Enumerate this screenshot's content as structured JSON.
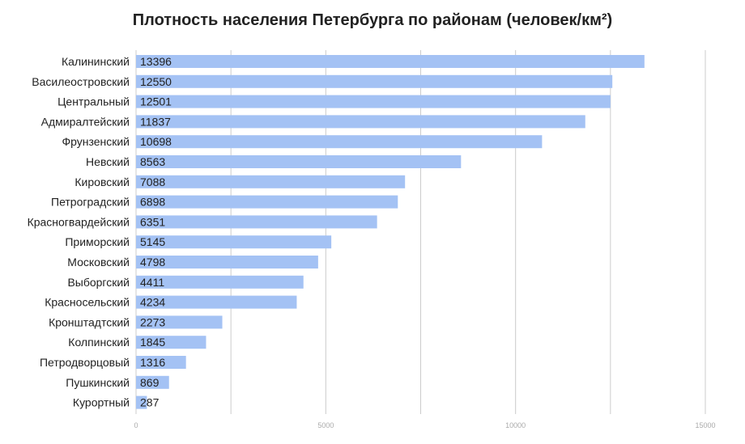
{
  "chart_data": {
    "type": "bar",
    "orientation": "horizontal",
    "title": "Плотность населения Петербурга по районам (человек/км²)",
    "categories": [
      "Калининский",
      "Василеостровский",
      "Центральный",
      "Адмиралтейский",
      "Фрунзенский",
      "Невский",
      "Кировский",
      "Петроградский",
      "Красногвардейский",
      "Приморский",
      "Московский",
      "Выборгский",
      "Красносельский",
      "Кронштадтский",
      "Колпинский",
      "Петродворцовый",
      "Пушкинский",
      "Курортный"
    ],
    "values": [
      13396,
      12550,
      12501,
      11837,
      10698,
      8563,
      7088,
      6898,
      6351,
      5145,
      4798,
      4411,
      4234,
      2273,
      1845,
      1316,
      869,
      287
    ],
    "data_labels": [
      "13396",
      "12550",
      "12501",
      "11837",
      "10698",
      "8563",
      "7088",
      "6898",
      "6351",
      "5145",
      "4798",
      "4411",
      "4234",
      "2273",
      "1845",
      "1316",
      "869",
      "287"
    ],
    "xlim": [
      0,
      15000
    ],
    "xticks": [
      "0",
      "5000",
      "10000",
      "15000"
    ],
    "xtick_values": [
      0,
      5000,
      10000,
      15000
    ],
    "grid": true,
    "colors": {
      "bar": "#a4c2f4",
      "grid": "#cccccc",
      "text": "#222222",
      "tick": "#aaaaaa"
    }
  }
}
